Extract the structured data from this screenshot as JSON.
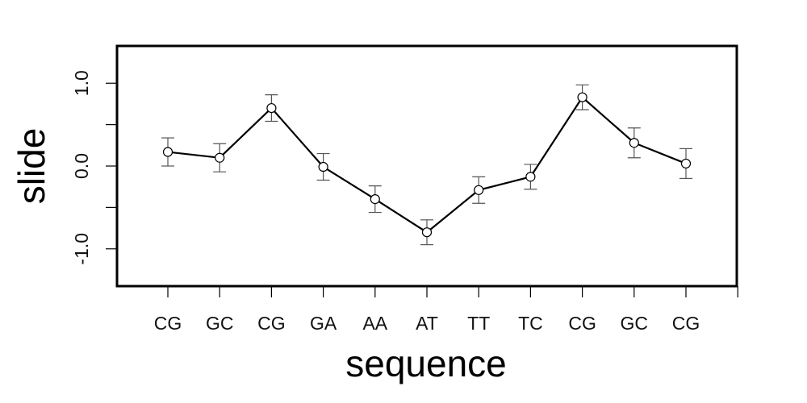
{
  "chart_data": {
    "type": "line",
    "xlabel": "sequence",
    "ylabel": "slide",
    "categories": [
      "CG",
      "GC",
      "CG",
      "GA",
      "AA",
      "AT",
      "TT",
      "TC",
      "CG",
      "GC",
      "CG"
    ],
    "series": [
      {
        "values": [
          0.17,
          0.1,
          0.7,
          -0.01,
          -0.4,
          -0.8,
          -0.29,
          -0.13,
          0.83,
          0.28,
          0.03
        ],
        "error": [
          0.17,
          0.17,
          0.16,
          0.16,
          0.16,
          0.15,
          0.16,
          0.15,
          0.15,
          0.18,
          0.18
        ]
      }
    ],
    "ylim": [
      -1.45,
      1.45
    ],
    "yticks": [
      -1.0,
      -0.5,
      0.0,
      0.5,
      1.0
    ],
    "ytick_labels": [
      "-1.0",
      "",
      "0.0",
      "",
      "1.0"
    ],
    "grid": false,
    "colors": {
      "line": "#000000",
      "error_bar": "#555555",
      "frame": "#000000"
    }
  }
}
